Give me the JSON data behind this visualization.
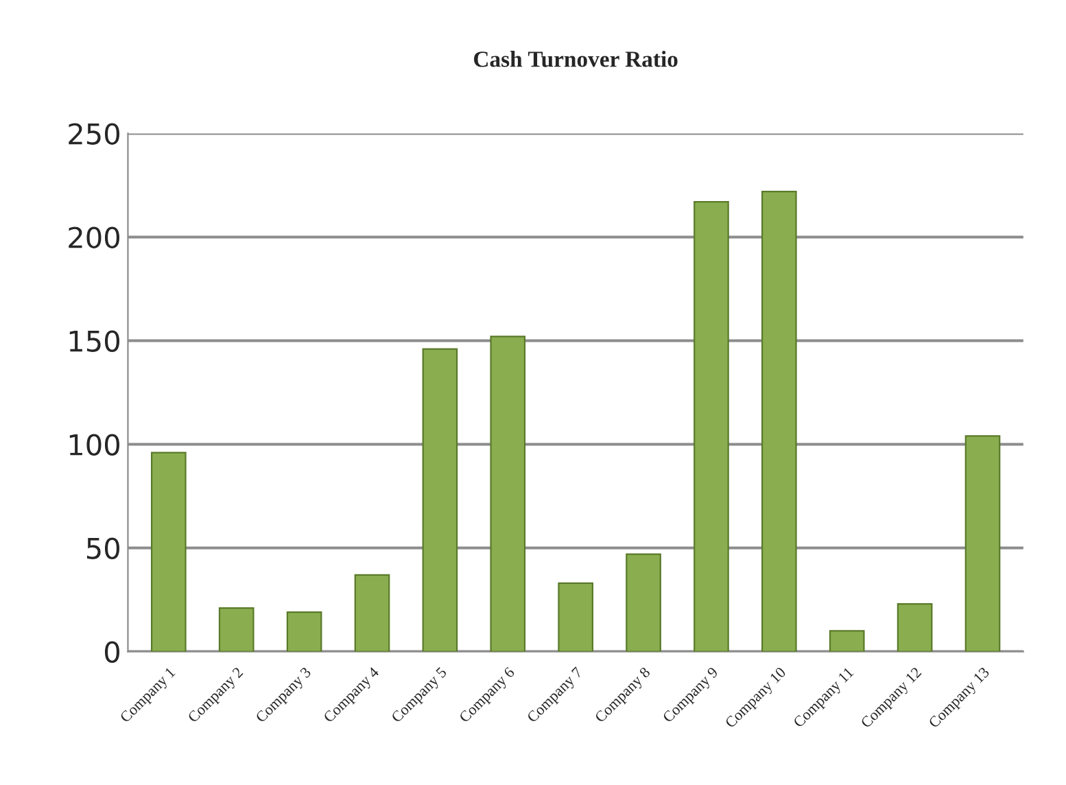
{
  "chart_data": {
    "type": "bar",
    "title": "Cash Turnover Ratio",
    "categories": [
      "Company 1",
      "Company 2",
      "Company 3",
      "Company 4",
      "Company 5",
      "Company 6",
      "Company 7",
      "Company 8",
      "Company 9",
      "Company 10",
      "Company 11",
      "Company 12",
      "Company 13"
    ],
    "values": [
      96,
      21,
      19,
      37,
      146,
      152,
      33,
      47,
      217,
      222,
      10,
      23,
      104
    ],
    "color": "#8aae4f",
    "ylim": [
      0,
      250
    ],
    "yticks": [
      0,
      50,
      100,
      150,
      200,
      250
    ],
    "grid": "y"
  }
}
